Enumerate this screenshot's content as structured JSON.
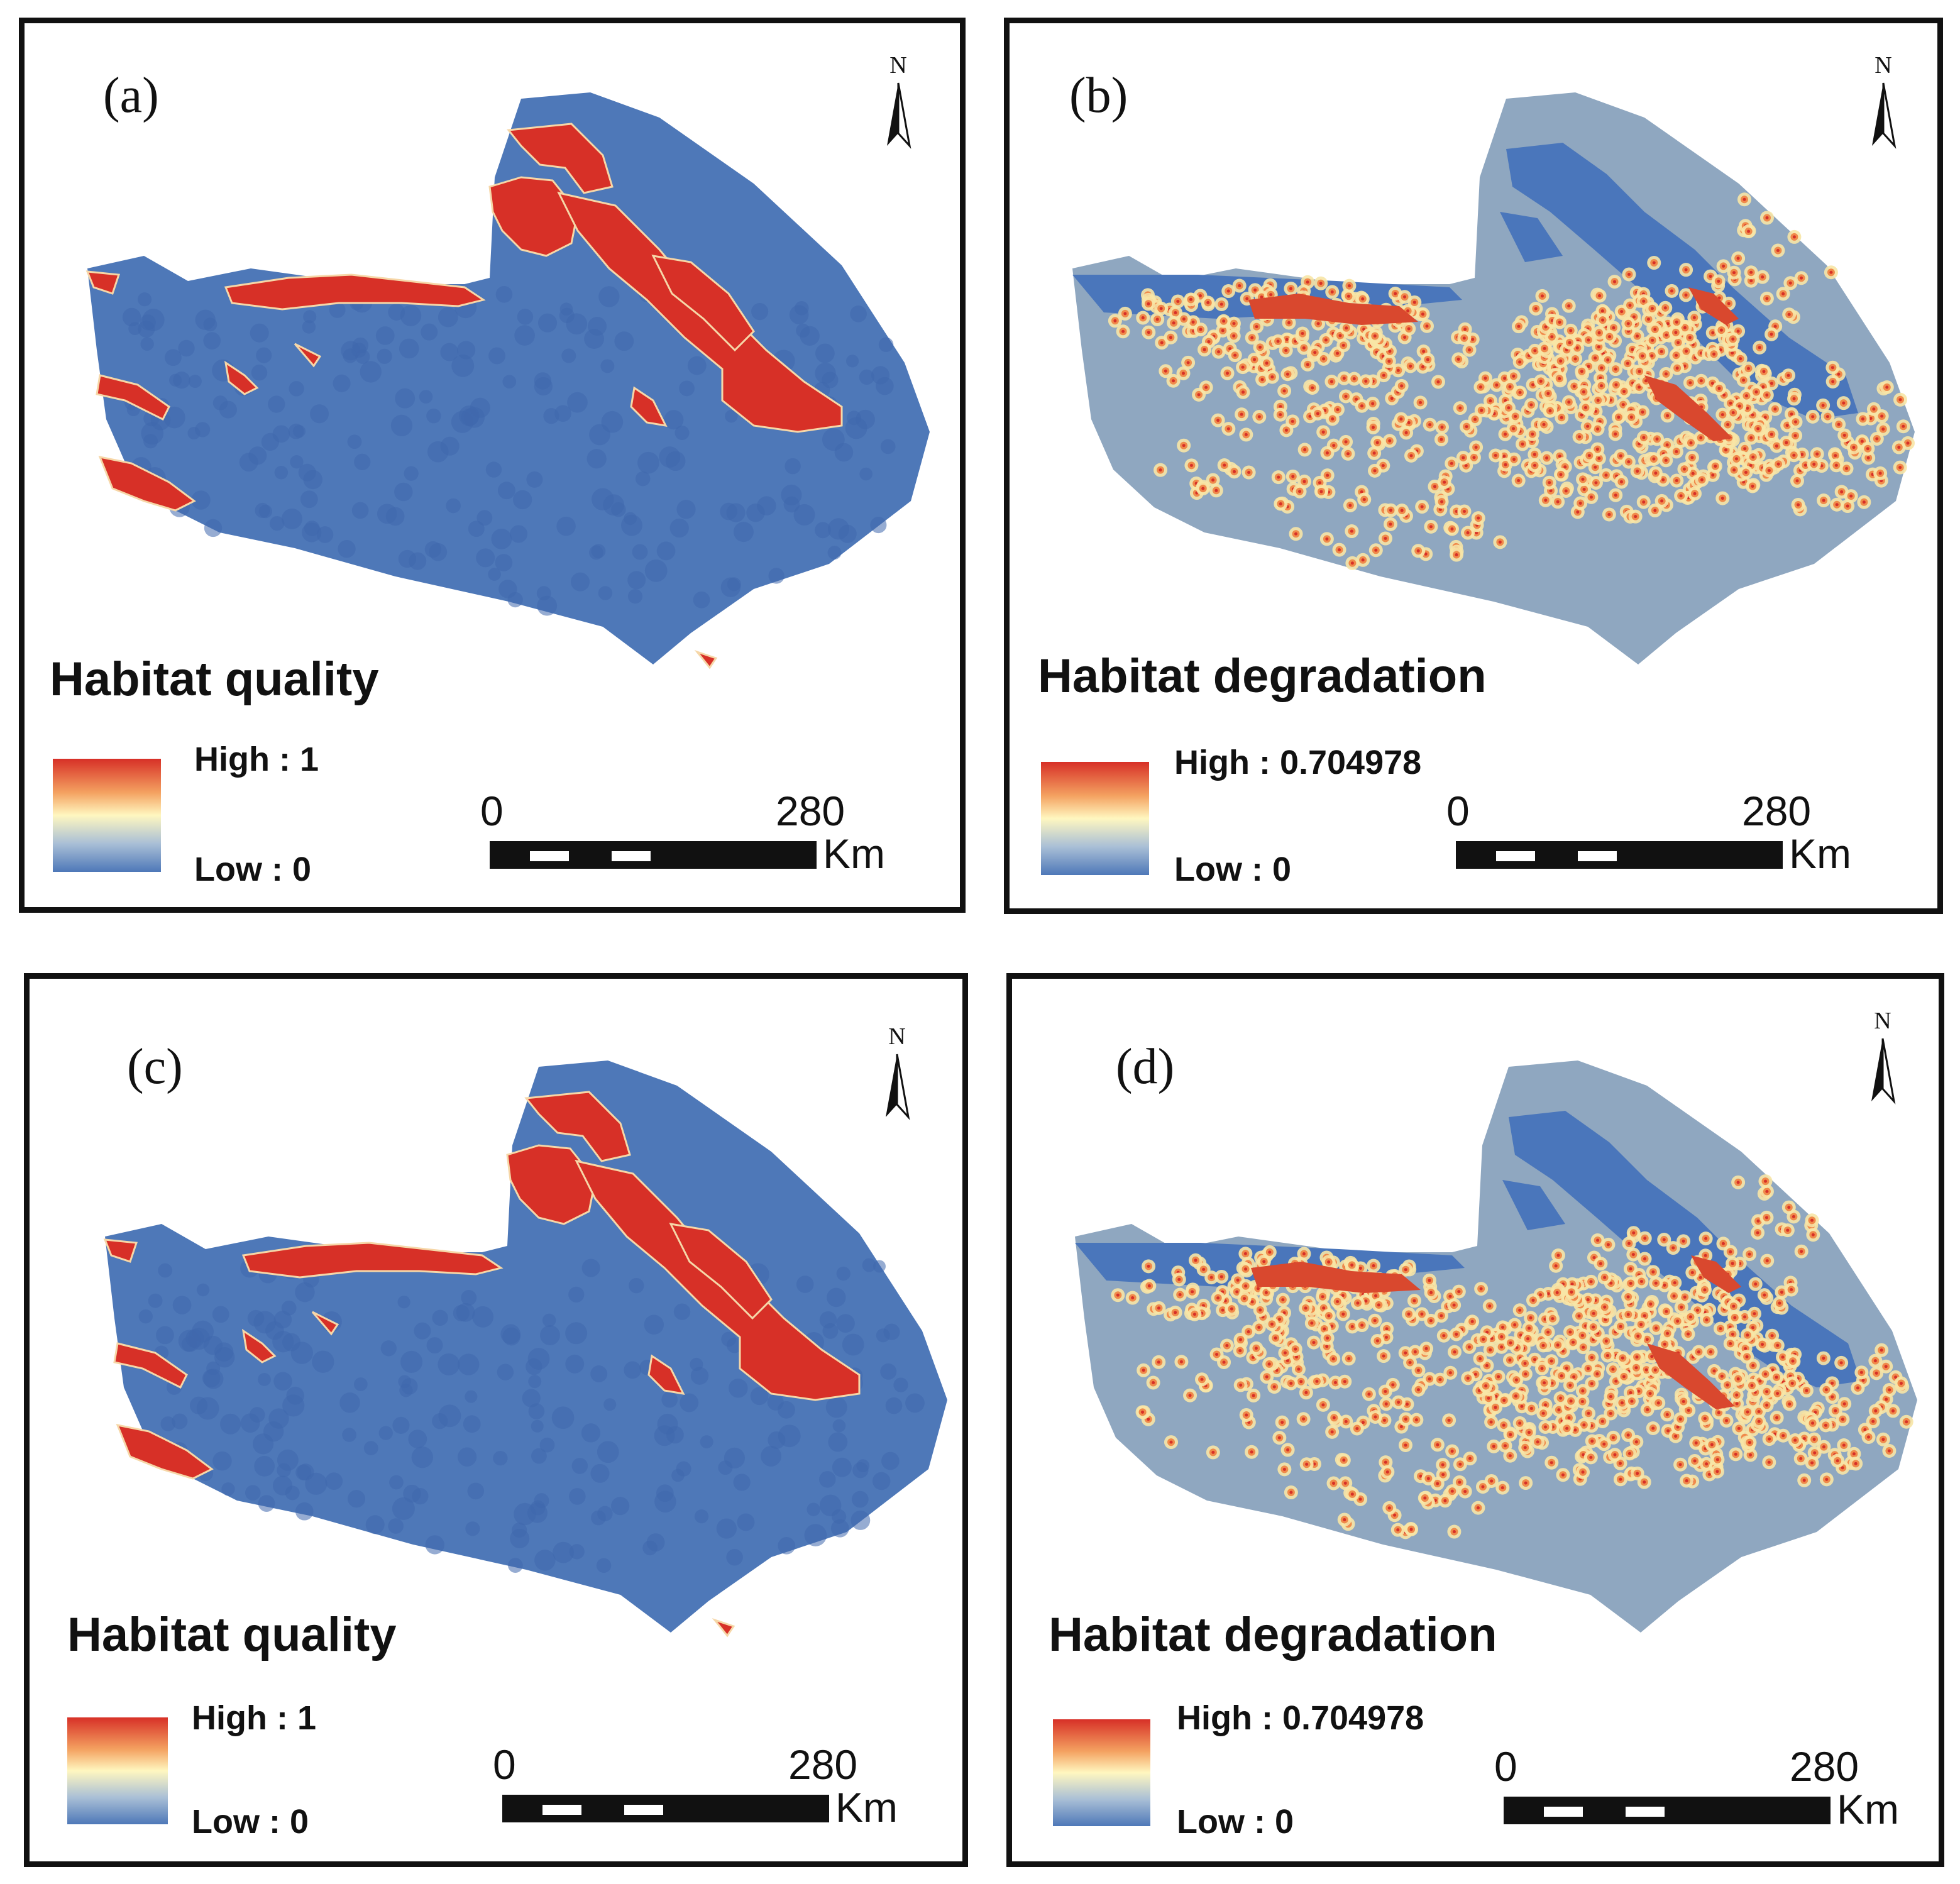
{
  "colors": {
    "high": "#d73027",
    "mid": "#fff7c0",
    "low": "#4e78b8",
    "degr_base": "#8fa7c0"
  },
  "panels": [
    {
      "id": "a",
      "label": "(a)",
      "title": "Habitat quality",
      "legend_high": "High : 1",
      "legend_low": "Low : 0",
      "scale_zero": "0",
      "scale_max": "280",
      "scale_unit": "Km",
      "north": "N",
      "type": "quality"
    },
    {
      "id": "b",
      "label": "(b)",
      "title": "Habitat degradation",
      "legend_high": "High : 0.704978",
      "legend_low": "Low : 0",
      "scale_zero": "0",
      "scale_max": "280",
      "scale_unit": "Km",
      "north": "N",
      "type": "degradation"
    },
    {
      "id": "c",
      "label": "(c)",
      "title": "Habitat quality",
      "legend_high": "High : 1",
      "legend_low": "Low : 0",
      "scale_zero": "0",
      "scale_max": "280",
      "scale_unit": "Km",
      "north": "N",
      "type": "quality"
    },
    {
      "id": "d",
      "label": "(d)",
      "title": "Habitat degradation",
      "legend_high": "High : 0.704978",
      "legend_low": "Low : 0",
      "scale_zero": "0",
      "scale_max": "280",
      "scale_unit": "Km",
      "north": "N",
      "type": "degradation"
    }
  ]
}
